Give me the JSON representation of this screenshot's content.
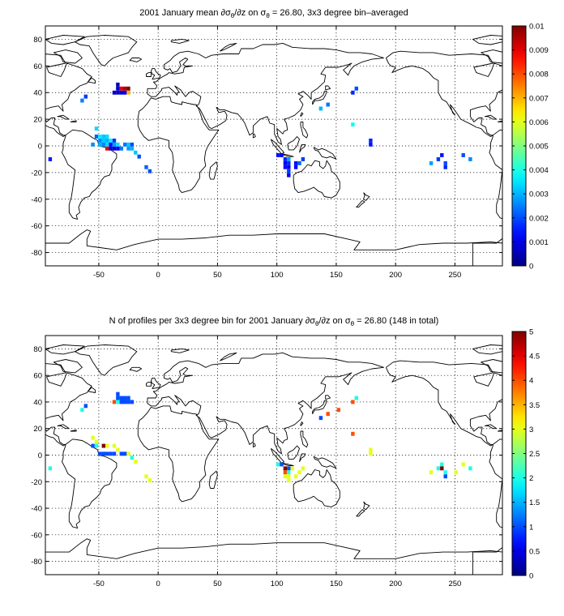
{
  "chart_data": [
    {
      "type": "heatmap",
      "title_parts": {
        "pre": "2001 January mean ∂σ",
        "sub1": "θ",
        "mid": "/∂z on σ",
        "sub2": "θ",
        "post": " = 26.80, 3x3 degree bin–averaged"
      },
      "xlim": [
        -95,
        290
      ],
      "ylim": [
        -90,
        90
      ],
      "xticks": [
        -50,
        0,
        50,
        100,
        150,
        200,
        250
      ],
      "yticks": [
        -80,
        -60,
        -40,
        -20,
        0,
        20,
        40,
        60,
        80
      ],
      "grid": true,
      "colormap": "jet",
      "clim": [
        0,
        0.01
      ],
      "colorbar_ticks": [
        "0",
        "0.001",
        "0.002",
        "0.003",
        "0.004",
        "0.005",
        "0.006",
        "0.007",
        "0.008",
        "0.009",
        "0.01"
      ],
      "bin_size_deg": 3,
      "cells": [
        {
          "lon": -91,
          "lat": -10,
          "v": 0.0015
        },
        {
          "lon": -64,
          "lat": 34,
          "v": 0.0025
        },
        {
          "lon": -61,
          "lat": 37,
          "v": 0.0018
        },
        {
          "lon": -37,
          "lat": 40,
          "v": 0.0006
        },
        {
          "lon": -34,
          "lat": 40,
          "v": 0.0006
        },
        {
          "lon": -34,
          "lat": 43,
          "v": 0.0008
        },
        {
          "lon": -34,
          "lat": 46,
          "v": 0.0006
        },
        {
          "lon": -31,
          "lat": 40,
          "v": 0.001
        },
        {
          "lon": -31,
          "lat": 43,
          "v": 0.009
        },
        {
          "lon": -28,
          "lat": 40,
          "v": 0.0012
        },
        {
          "lon": -28,
          "lat": 43,
          "v": 0.0095
        },
        {
          "lon": -25,
          "lat": 40,
          "v": 0.007
        },
        {
          "lon": -25,
          "lat": 43,
          "v": 0.01
        },
        {
          "lon": -52,
          "lat": 13,
          "v": 0.0034
        },
        {
          "lon": -52,
          "lat": 7,
          "v": 0.0022
        },
        {
          "lon": -49,
          "lat": 7,
          "v": 0.0036
        },
        {
          "lon": -46,
          "lat": 7,
          "v": 0.0032
        },
        {
          "lon": -43,
          "lat": 7,
          "v": 0.0034
        },
        {
          "lon": -49,
          "lat": 4,
          "v": 0.0026
        },
        {
          "lon": -46,
          "lat": 4,
          "v": 0.0032
        },
        {
          "lon": -43,
          "lat": 4,
          "v": 0.003
        },
        {
          "lon": -40,
          "lat": 4,
          "v": 0.0036
        },
        {
          "lon": -37,
          "lat": 4,
          "v": 0.0018
        },
        {
          "lon": -55,
          "lat": 1,
          "v": 0.0026
        },
        {
          "lon": -49,
          "lat": 1,
          "v": 0.003
        },
        {
          "lon": -46,
          "lat": 1,
          "v": 0.0026
        },
        {
          "lon": -43,
          "lat": 1,
          "v": 0.0034
        },
        {
          "lon": -40,
          "lat": 1,
          "v": 0.0012
        },
        {
          "lon": -37,
          "lat": 1,
          "v": 0.0028
        },
        {
          "lon": -34,
          "lat": 1,
          "v": 0.0034
        },
        {
          "lon": -28,
          "lat": 1,
          "v": 0.0024
        },
        {
          "lon": -25,
          "lat": 1,
          "v": 0.0032
        },
        {
          "lon": -22,
          "lat": 1,
          "v": 0.002
        },
        {
          "lon": -43,
          "lat": -2,
          "v": 0.009
        },
        {
          "lon": -40,
          "lat": -2,
          "v": 0.001
        },
        {
          "lon": -37,
          "lat": -2,
          "v": 0.0008
        },
        {
          "lon": -34,
          "lat": -2,
          "v": 0.0012
        },
        {
          "lon": -31,
          "lat": -2,
          "v": 0.0024
        },
        {
          "lon": -25,
          "lat": -2,
          "v": 0.0028
        },
        {
          "lon": -22,
          "lat": -2,
          "v": 0.003
        },
        {
          "lon": -19,
          "lat": -5,
          "v": 0.0032
        },
        {
          "lon": -16,
          "lat": -8,
          "v": 0.002
        },
        {
          "lon": -10,
          "lat": -16,
          "v": 0.0022
        },
        {
          "lon": -7,
          "lat": -19,
          "v": 0.002
        },
        {
          "lon": 101,
          "lat": -7,
          "v": 0.0014
        },
        {
          "lon": 104,
          "lat": -7,
          "v": 0.0012
        },
        {
          "lon": 107,
          "lat": -10,
          "v": 0.0016
        },
        {
          "lon": 110,
          "lat": -10,
          "v": 0.0028
        },
        {
          "lon": 107,
          "lat": -13,
          "v": 0.0012
        },
        {
          "lon": 110,
          "lat": -13,
          "v": 0.0016
        },
        {
          "lon": 107,
          "lat": -16,
          "v": 0.0014
        },
        {
          "lon": 110,
          "lat": -16,
          "v": 0.001
        },
        {
          "lon": 110,
          "lat": -19,
          "v": 0.0018
        },
        {
          "lon": 110,
          "lat": -22,
          "v": 0.0012
        },
        {
          "lon": 116,
          "lat": -13,
          "v": 0.0014
        },
        {
          "lon": 119,
          "lat": -13,
          "v": 0.0022
        },
        {
          "lon": 122,
          "lat": -10,
          "v": 0.0018
        },
        {
          "lon": 116,
          "lat": -16,
          "v": 0.0012
        },
        {
          "lon": 137,
          "lat": 28,
          "v": 0.003
        },
        {
          "lon": 143,
          "lat": 31,
          "v": 0.0024
        },
        {
          "lon": 164,
          "lat": 40,
          "v": 0.0016
        },
        {
          "lon": 167,
          "lat": 43,
          "v": 0.002
        },
        {
          "lon": 164,
          "lat": 16,
          "v": 0.0038
        },
        {
          "lon": 179,
          "lat": 4,
          "v": 0.0016
        },
        {
          "lon": 179,
          "lat": 1,
          "v": 0.0014
        },
        {
          "lon": 230,
          "lat": -13,
          "v": 0.0028
        },
        {
          "lon": 236,
          "lat": -10,
          "v": 0.0018
        },
        {
          "lon": 239,
          "lat": -7,
          "v": 0.0014
        },
        {
          "lon": 242,
          "lat": -13,
          "v": 0.002
        },
        {
          "lon": 242,
          "lat": -16,
          "v": 0.0016
        },
        {
          "lon": 257,
          "lat": -7,
          "v": 0.002
        },
        {
          "lon": 263,
          "lat": -10,
          "v": 0.0026
        }
      ]
    },
    {
      "type": "heatmap",
      "title_parts": {
        "pre": "N of profiles per 3x3 degree bin for 2001 January ∂σ",
        "sub1": "θ",
        "mid": "/∂z on σ",
        "sub2": "θ",
        "post": " = 26.80 (148 in total)"
      },
      "xlim": [
        -95,
        290
      ],
      "ylim": [
        -90,
        90
      ],
      "xticks": [
        -50,
        0,
        50,
        100,
        150,
        200,
        250
      ],
      "yticks": [
        -80,
        -60,
        -40,
        -20,
        0,
        20,
        40,
        60,
        80
      ],
      "grid": true,
      "colormap": "jet",
      "clim": [
        0,
        5
      ],
      "colorbar_ticks": [
        "0",
        "0.5",
        "1",
        "1.5",
        "2",
        "2.5",
        "3",
        "3.5",
        "4",
        "4.5",
        "5"
      ],
      "bin_size_deg": 3,
      "cells": [
        {
          "lon": -91,
          "lat": -10,
          "v": 2
        },
        {
          "lon": -64,
          "lat": 34,
          "v": 2
        },
        {
          "lon": -61,
          "lat": 37,
          "v": 1
        },
        {
          "lon": -37,
          "lat": 40,
          "v": 4
        },
        {
          "lon": -34,
          "lat": 40,
          "v": 2
        },
        {
          "lon": -34,
          "lat": 43,
          "v": 1
        },
        {
          "lon": -34,
          "lat": 46,
          "v": 1
        },
        {
          "lon": -31,
          "lat": 40,
          "v": 1
        },
        {
          "lon": -31,
          "lat": 43,
          "v": 1
        },
        {
          "lon": -28,
          "lat": 40,
          "v": 1
        },
        {
          "lon": -28,
          "lat": 43,
          "v": 1
        },
        {
          "lon": -25,
          "lat": 40,
          "v": 1
        },
        {
          "lon": -25,
          "lat": 43,
          "v": 1
        },
        {
          "lon": -22,
          "lat": 40,
          "v": 1
        },
        {
          "lon": -55,
          "lat": 13,
          "v": 3
        },
        {
          "lon": -52,
          "lat": 10,
          "v": 3
        },
        {
          "lon": -55,
          "lat": 7,
          "v": 1
        },
        {
          "lon": -52,
          "lat": 7,
          "v": 2
        },
        {
          "lon": -46,
          "lat": 7,
          "v": 5
        },
        {
          "lon": -43,
          "lat": 7,
          "v": 3
        },
        {
          "lon": -37,
          "lat": 7,
          "v": 3
        },
        {
          "lon": -34,
          "lat": 4,
          "v": 3
        },
        {
          "lon": -49,
          "lat": 1,
          "v": 1
        },
        {
          "lon": -46,
          "lat": 1,
          "v": 1
        },
        {
          "lon": -43,
          "lat": 1,
          "v": 1
        },
        {
          "lon": -40,
          "lat": 1,
          "v": 1
        },
        {
          "lon": -37,
          "lat": 1,
          "v": 1
        },
        {
          "lon": -31,
          "lat": 1,
          "v": 1
        },
        {
          "lon": -28,
          "lat": 1,
          "v": 1
        },
        {
          "lon": -25,
          "lat": 1,
          "v": 3
        },
        {
          "lon": -22,
          "lat": -2,
          "v": 2
        },
        {
          "lon": -19,
          "lat": -5,
          "v": 3
        },
        {
          "lon": -10,
          "lat": -16,
          "v": 3
        },
        {
          "lon": -7,
          "lat": -19,
          "v": 3
        },
        {
          "lon": 101,
          "lat": -7,
          "v": 2
        },
        {
          "lon": 104,
          "lat": -7,
          "v": 1
        },
        {
          "lon": 107,
          "lat": -10,
          "v": 5
        },
        {
          "lon": 110,
          "lat": -10,
          "v": 1
        },
        {
          "lon": 107,
          "lat": -13,
          "v": 4
        },
        {
          "lon": 110,
          "lat": -13,
          "v": 2
        },
        {
          "lon": 107,
          "lat": -16,
          "v": 3
        },
        {
          "lon": 110,
          "lat": -16,
          "v": 3
        },
        {
          "lon": 110,
          "lat": -19,
          "v": 3
        },
        {
          "lon": 113,
          "lat": -10,
          "v": 3
        },
        {
          "lon": 119,
          "lat": -13,
          "v": 3
        },
        {
          "lon": 122,
          "lat": -10,
          "v": 3
        },
        {
          "lon": 116,
          "lat": -16,
          "v": 3
        },
        {
          "lon": 137,
          "lat": 28,
          "v": 1
        },
        {
          "lon": 143,
          "lat": 31,
          "v": 4
        },
        {
          "lon": 152,
          "lat": 34,
          "v": 4
        },
        {
          "lon": 164,
          "lat": 40,
          "v": 4
        },
        {
          "lon": 167,
          "lat": 43,
          "v": 2
        },
        {
          "lon": 164,
          "lat": 16,
          "v": 4
        },
        {
          "lon": 179,
          "lat": 4,
          "v": 3
        },
        {
          "lon": 179,
          "lat": 1,
          "v": 3
        },
        {
          "lon": 230,
          "lat": -13,
          "v": 3
        },
        {
          "lon": 236,
          "lat": -10,
          "v": 2
        },
        {
          "lon": 239,
          "lat": -7,
          "v": 2
        },
        {
          "lon": 239,
          "lat": -10,
          "v": 5
        },
        {
          "lon": 242,
          "lat": -13,
          "v": 2
        },
        {
          "lon": 242,
          "lat": -16,
          "v": 1
        },
        {
          "lon": 251,
          "lat": -13,
          "v": 3
        },
        {
          "lon": 257,
          "lat": -7,
          "v": 3
        },
        {
          "lon": 263,
          "lat": -10,
          "v": 2
        }
      ]
    }
  ]
}
